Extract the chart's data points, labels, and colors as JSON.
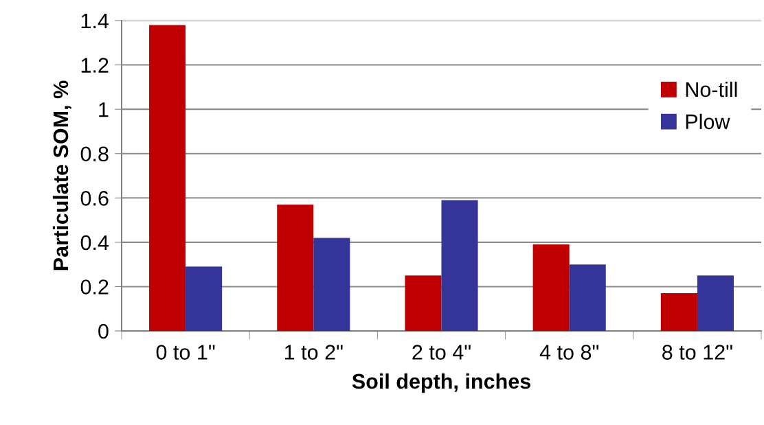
{
  "chart_data": {
    "type": "bar",
    "xlabel": "Soil depth, inches",
    "ylabel": "Particulate SOM, %",
    "categories": [
      "0 to 1\"",
      "1 to 2\"",
      "2 to 4\"",
      "4 to 8\"",
      "8 to 12\""
    ],
    "series": [
      {
        "name": "No-till",
        "color": "#c00000",
        "values": [
          1.38,
          0.57,
          0.25,
          0.39,
          0.17
        ]
      },
      {
        "name": "Plow",
        "color": "#353599",
        "values": [
          0.29,
          0.42,
          0.59,
          0.3,
          0.25
        ]
      }
    ],
    "ylim": [
      0,
      1.4
    ],
    "yticks": [
      0,
      0.2,
      0.4,
      0.6,
      0.8,
      1,
      1.2,
      1.4
    ],
    "grid": "y",
    "legend": "right"
  }
}
